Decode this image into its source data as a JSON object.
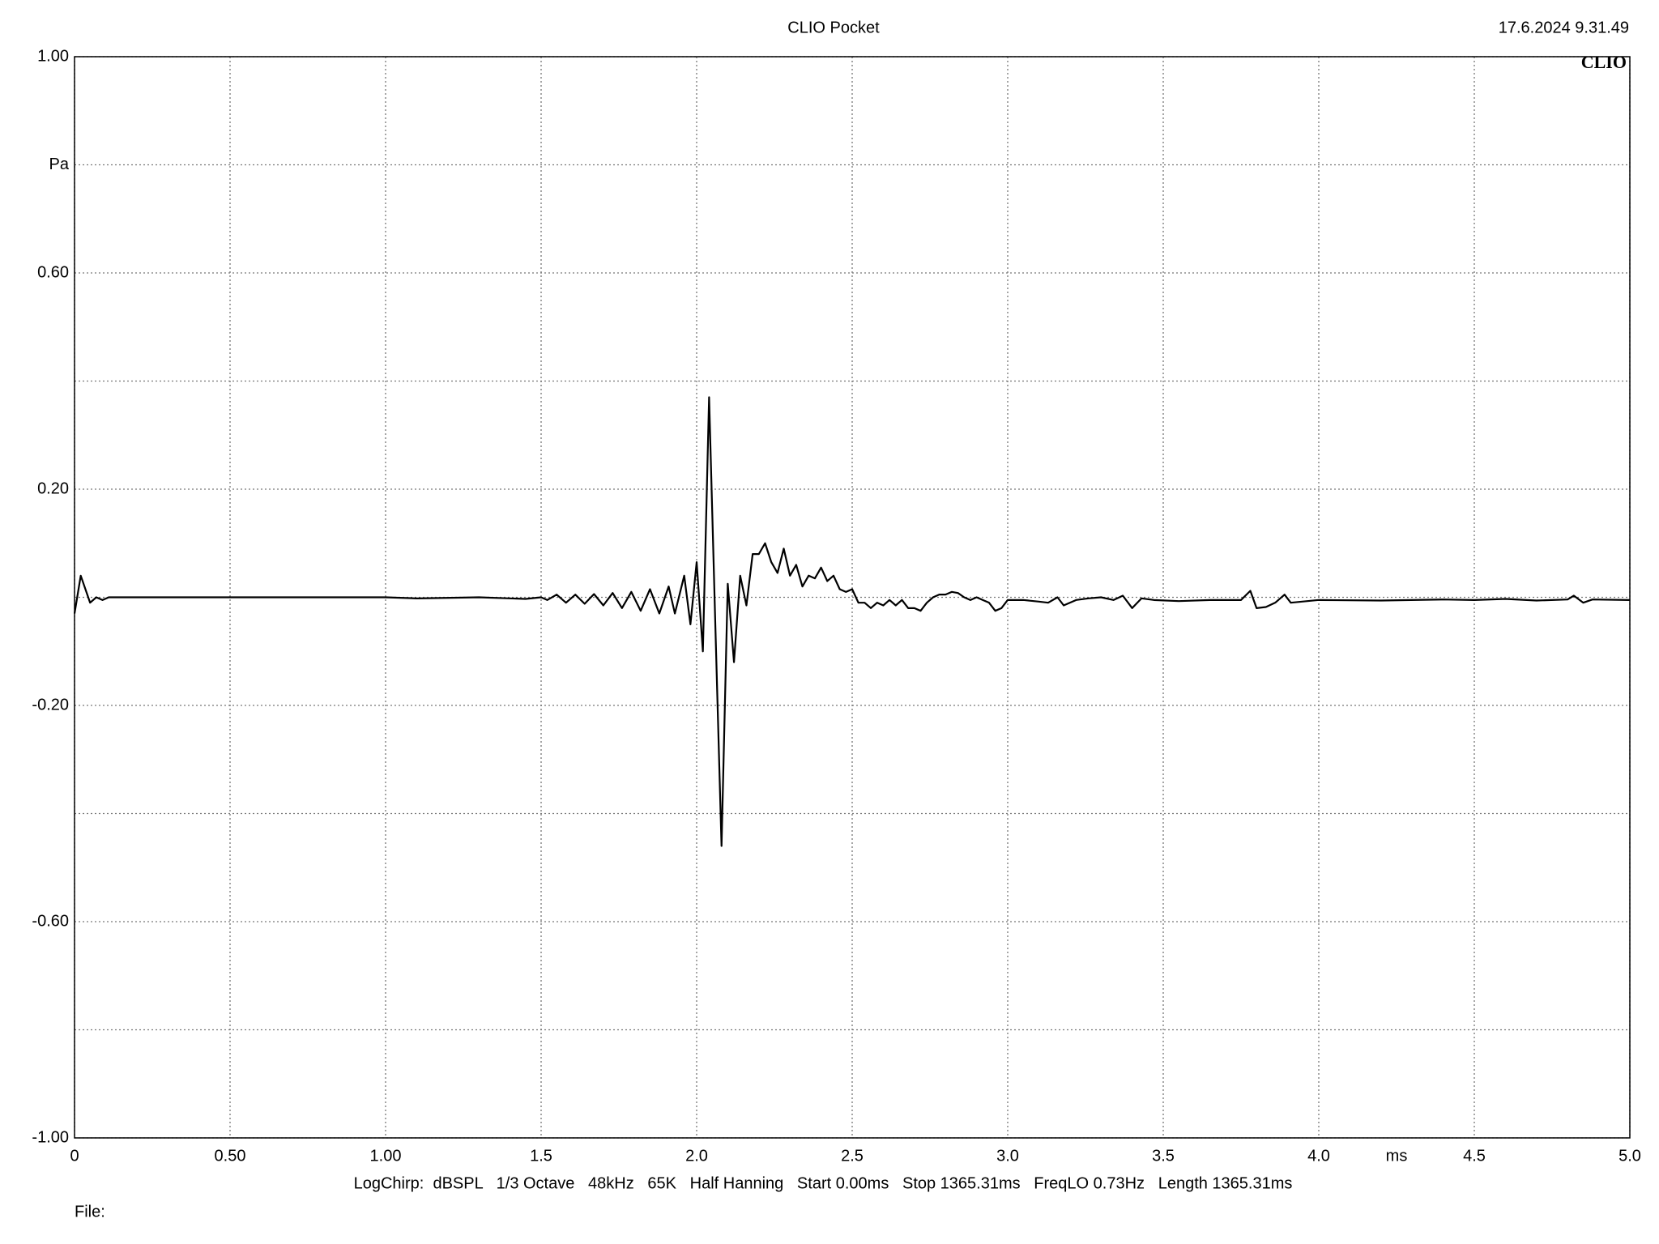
{
  "chart_data": {
    "type": "line",
    "title": "CLIO Pocket",
    "timestamp": "17.6.2024 9.31.49",
    "logo": "CLIO",
    "x_label": "ms",
    "y_label": "Pa",
    "footer": "LogChirp:  dBSPL   1/3 Octave   48kHz   65K   Half Hanning   Start 0.00ms   Stop 1365.31ms   FreqLO 0.73Hz   Length 1365.31ms",
    "file_label": "File:",
    "xlim": [
      0,
      5
    ],
    "ylim": [
      -1,
      1
    ],
    "xticks": [
      0,
      {
        "value": 0.5,
        "label": "0.50"
      },
      {
        "value": 1,
        "label": "1.00"
      },
      1.5,
      {
        "value": 2,
        "label": "2.0"
      },
      2.5,
      {
        "value": 3,
        "label": "3.0"
      },
      3.5,
      {
        "value": 4,
        "label": "4.0"
      },
      4.5,
      {
        "value": 5,
        "label": "5.0"
      }
    ],
    "yticks": [
      {
        "value": 1,
        "label": "1.00"
      },
      {
        "value": 0.6,
        "label": "0.60"
      },
      {
        "value": 0.2,
        "label": "0.20"
      },
      {
        "value": -0.2,
        "label": "-0.20"
      },
      {
        "value": -0.6,
        "label": "-0.60"
      },
      {
        "value": -1,
        "label": "-1.00"
      }
    ],
    "y_minor_ticks": [
      0.8,
      0.4,
      0,
      -0.4,
      -0.8
    ],
    "grid": true,
    "color": "#000000",
    "x": [
      0,
      0.02,
      0.05,
      0.07,
      0.09,
      0.11,
      0.15,
      0.3,
      0.5,
      1.0,
      1.1,
      1.3,
      1.45,
      1.5,
      1.52,
      1.55,
      1.58,
      1.61,
      1.64,
      1.67,
      1.7,
      1.73,
      1.76,
      1.79,
      1.82,
      1.85,
      1.88,
      1.91,
      1.93,
      1.96,
      1.98,
      2.0,
      2.02,
      2.04,
      2.06,
      2.08,
      2.1,
      2.12,
      2.14,
      2.16,
      2.18,
      2.2,
      2.22,
      2.24,
      2.26,
      2.28,
      2.3,
      2.32,
      2.34,
      2.36,
      2.38,
      2.4,
      2.42,
      2.44,
      2.46,
      2.48,
      2.5,
      2.52,
      2.54,
      2.56,
      2.58,
      2.6,
      2.62,
      2.64,
      2.66,
      2.68,
      2.7,
      2.72,
      2.74,
      2.76,
      2.78,
      2.8,
      2.82,
      2.84,
      2.86,
      2.88,
      2.9,
      2.92,
      2.94,
      2.96,
      2.98,
      3.0,
      3.05,
      3.1,
      3.13,
      3.16,
      3.18,
      3.22,
      3.26,
      3.3,
      3.34,
      3.37,
      3.4,
      3.43,
      3.47,
      3.55,
      3.65,
      3.75,
      3.78,
      3.8,
      3.83,
      3.86,
      3.89,
      3.91,
      4.0,
      4.2,
      4.4,
      4.5,
      4.6,
      4.7,
      4.8,
      4.82,
      4.85,
      4.88,
      5.0
    ],
    "values": [
      -0.03,
      0.04,
      -0.01,
      0.0,
      -0.005,
      0.0,
      0.0,
      0.0,
      0.0,
      0.0,
      -0.002,
      0.0,
      -0.003,
      0.0,
      -0.005,
      0.005,
      -0.01,
      0.005,
      -0.012,
      0.006,
      -0.015,
      0.008,
      -0.02,
      0.01,
      -0.025,
      0.015,
      -0.03,
      0.02,
      -0.03,
      0.04,
      -0.05,
      0.065,
      -0.1,
      0.37,
      -0.05,
      -0.46,
      0.025,
      -0.12,
      0.04,
      -0.015,
      0.08,
      0.08,
      0.1,
      0.065,
      0.045,
      0.09,
      0.04,
      0.06,
      0.02,
      0.04,
      0.035,
      0.055,
      0.03,
      0.04,
      0.015,
      0.01,
      0.015,
      -0.01,
      -0.01,
      -0.02,
      -0.01,
      -0.015,
      -0.005,
      -0.015,
      -0.005,
      -0.02,
      -0.02,
      -0.025,
      -0.01,
      0.0,
      0.005,
      0.005,
      0.01,
      0.008,
      0.0,
      -0.005,
      0.0,
      -0.005,
      -0.01,
      -0.025,
      -0.02,
      -0.005,
      -0.005,
      -0.008,
      -0.01,
      0.0,
      -0.015,
      -0.005,
      -0.002,
      0.0,
      -0.005,
      0.003,
      -0.02,
      -0.002,
      -0.005,
      -0.007,
      -0.005,
      -0.005,
      0.012,
      -0.02,
      -0.018,
      -0.01,
      0.005,
      -0.01,
      -0.005,
      -0.006,
      -0.004,
      -0.005,
      -0.003,
      -0.006,
      -0.004,
      0.003,
      -0.01,
      -0.004,
      -0.005
    ]
  }
}
